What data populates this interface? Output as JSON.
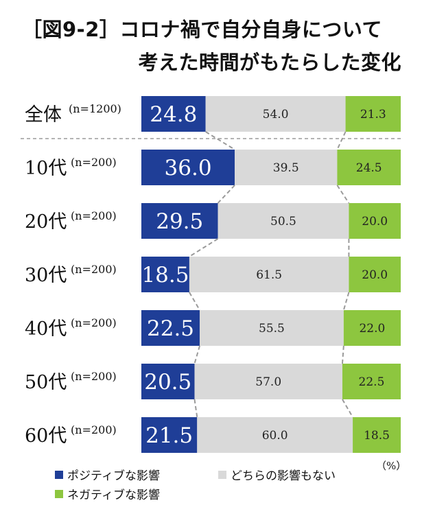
{
  "title_line1": "［図9-2］コロナ禍で自分自身について",
  "title_line2": "考えた時間がもたらした変化",
  "unit": "（%）",
  "colors": {
    "positive": "#1f3e97",
    "neutral": "#d9d9d9",
    "negative": "#8dc63f",
    "divider": "#9a9a9a"
  },
  "chart_data": {
    "type": "bar",
    "stacked": true,
    "orientation": "horizontal",
    "categories": [
      {
        "label": "全体",
        "n": "(n=1200)"
      },
      {
        "label": "10代",
        "n": "(n=200)"
      },
      {
        "label": "20代",
        "n": "(n=200)"
      },
      {
        "label": "30代",
        "n": "(n=200)"
      },
      {
        "label": "40代",
        "n": "(n=200)"
      },
      {
        "label": "50代",
        "n": "(n=200)"
      },
      {
        "label": "60代",
        "n": "(n=200)"
      }
    ],
    "series": [
      {
        "name": "ポジティブな影響",
        "values": [
          "24.8",
          "36.0",
          "29.5",
          "18.5",
          "22.5",
          "20.5",
          "21.5"
        ]
      },
      {
        "name": "どちらの影響もない",
        "values": [
          "54.0",
          "39.5",
          "50.5",
          "61.5",
          "55.5",
          "57.0",
          "60.0"
        ]
      },
      {
        "name": "ネガティブな影響",
        "values": [
          "21.3",
          "24.5",
          "20.0",
          "20.0",
          "22.0",
          "22.5",
          "18.5"
        ]
      }
    ],
    "xlim": [
      0,
      100
    ],
    "legend_position": "bottom"
  }
}
